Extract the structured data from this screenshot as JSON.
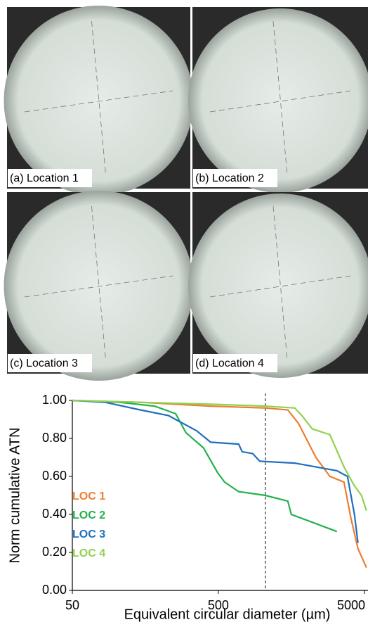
{
  "panels": [
    {
      "label": "(a) Location 1"
    },
    {
      "label": "(b) Location 2"
    },
    {
      "label": "(c) Location 3"
    },
    {
      "label": "(d) Location 4"
    }
  ],
  "chart_data": {
    "type": "line",
    "xlabel": "Equivalent circular diameter (µm)",
    "ylabel": "Norm cumulative ATN",
    "xscale": "log",
    "xlim": [
      50,
      5300
    ],
    "xticks": [
      50,
      500,
      5000
    ],
    "ylim": [
      0,
      1
    ],
    "yticks": [
      {
        "value": 0,
        "label": "0.00"
      },
      {
        "value": 0.2,
        "label": "0.20"
      },
      {
        "value": 0.4,
        "label": "0.40"
      },
      {
        "value": 0.6,
        "label": "0.60"
      },
      {
        "value": 0.8,
        "label": "0.80"
      },
      {
        "value": 1,
        "label": "1.00"
      }
    ],
    "reference_line_x": 1050,
    "series": [
      {
        "name": "LOC 1",
        "color": "#ed7d31",
        "x": [
          50,
          146,
          443,
          1050,
          1496,
          1766,
          2330,
          2905,
          3630,
          4050,
          4525,
          5170
        ],
        "values": [
          1.0,
          0.99,
          0.97,
          0.96,
          0.95,
          0.88,
          0.7,
          0.6,
          0.57,
          0.38,
          0.22,
          0.12
        ]
      },
      {
        "name": "LOC 2",
        "color": "#22b14c",
        "x": [
          50,
          105,
          183,
          255,
          300,
          396,
          494,
          552,
          689,
          1050,
          1496,
          1581,
          3245
        ],
        "values": [
          1.0,
          0.99,
          0.97,
          0.93,
          0.83,
          0.75,
          0.62,
          0.57,
          0.52,
          0.5,
          0.47,
          0.4,
          0.31
        ]
      },
      {
        "name": "LOC 3",
        "color": "#1f6fc0",
        "x": [
          50,
          84,
          146,
          228,
          355,
          443,
          689,
          728,
          861,
          961,
          1670,
          3245,
          3835,
          4280,
          4525
        ],
        "values": [
          1.0,
          0.99,
          0.95,
          0.92,
          0.84,
          0.78,
          0.77,
          0.73,
          0.72,
          0.68,
          0.67,
          0.63,
          0.6,
          0.4,
          0.25
        ]
      },
      {
        "name": "LOC 4",
        "color": "#8fd14f",
        "x": [
          50,
          146,
          443,
          1050,
          1670,
          1866,
          2203,
          2905,
          3630,
          4280,
          4780,
          5170
        ],
        "values": [
          1.0,
          0.99,
          0.98,
          0.97,
          0.96,
          0.92,
          0.85,
          0.82,
          0.65,
          0.55,
          0.5,
          0.42
        ]
      }
    ]
  }
}
